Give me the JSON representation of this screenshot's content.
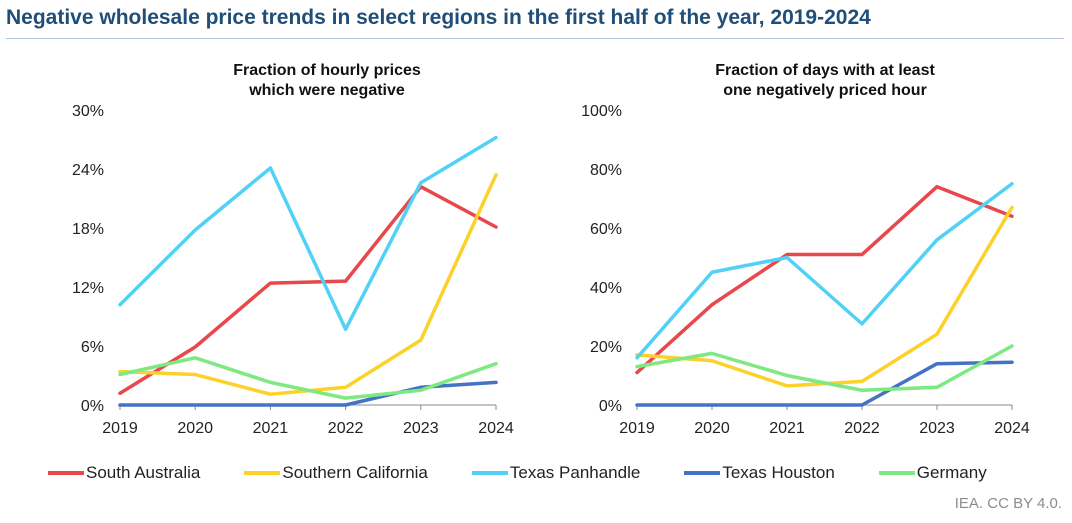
{
  "title": "Negative wholesale price trends in select regions in the first half of the year, 2019-2024",
  "source": "IEA. CC BY 4.0.",
  "legend": [
    {
      "name": "South Australia",
      "color": "#e8474c"
    },
    {
      "name": "Southern California",
      "color": "#fcd12a"
    },
    {
      "name": "Texas Panhandle",
      "color": "#51d1f6"
    },
    {
      "name": "Texas Houston",
      "color": "#4472c4"
    },
    {
      "name": "Germany",
      "color": "#7ee882"
    }
  ],
  "chart_data": [
    {
      "type": "line",
      "title_lines": [
        "Fraction of hourly prices",
        "which were negative"
      ],
      "x": [
        "2019",
        "2020",
        "2021",
        "2022",
        "2023",
        "2024"
      ],
      "ylim": [
        0,
        30
      ],
      "yticks": [
        "0%",
        "6%",
        "12%",
        "18%",
        "24%",
        "30%"
      ],
      "series": [
        {
          "name": "South Australia",
          "color": "#e8474c",
          "values": [
            1.2,
            5.9,
            12.4,
            12.6,
            22.2,
            18.1
          ]
        },
        {
          "name": "Southern California",
          "color": "#fcd12a",
          "values": [
            3.4,
            3.1,
            1.1,
            1.8,
            6.6,
            23.4
          ]
        },
        {
          "name": "Texas Panhandle",
          "color": "#51d1f6",
          "values": [
            10.2,
            17.8,
            24.1,
            7.7,
            22.6,
            27.2
          ]
        },
        {
          "name": "Texas Houston",
          "color": "#4472c4",
          "values": [
            0,
            0,
            0,
            0,
            1.8,
            2.3
          ]
        },
        {
          "name": "Germany",
          "color": "#7ee882",
          "values": [
            3.1,
            4.8,
            2.3,
            0.7,
            1.5,
            4.2
          ]
        }
      ]
    },
    {
      "type": "line",
      "title_lines": [
        "Fraction of days with at least",
        "one negatively priced hour"
      ],
      "x": [
        "2019",
        "2020",
        "2021",
        "2022",
        "2023",
        "2024"
      ],
      "ylim": [
        0,
        100
      ],
      "yticks": [
        "0%",
        "20%",
        "40%",
        "60%",
        "80%",
        "100%"
      ],
      "series": [
        {
          "name": "South Australia",
          "color": "#e8474c",
          "values": [
            11,
            34,
            51,
            51,
            74,
            64
          ]
        },
        {
          "name": "Southern California",
          "color": "#fcd12a",
          "values": [
            17,
            15,
            6.5,
            8,
            24,
            67
          ]
        },
        {
          "name": "Texas Panhandle",
          "color": "#51d1f6",
          "values": [
            16,
            45,
            50,
            27.5,
            56,
            75
          ]
        },
        {
          "name": "Texas Houston",
          "color": "#4472c4",
          "values": [
            0,
            0,
            0,
            0,
            14,
            14.5
          ]
        },
        {
          "name": "Germany",
          "color": "#7ee882",
          "values": [
            13,
            17.5,
            10,
            5,
            6,
            20
          ]
        }
      ]
    }
  ]
}
